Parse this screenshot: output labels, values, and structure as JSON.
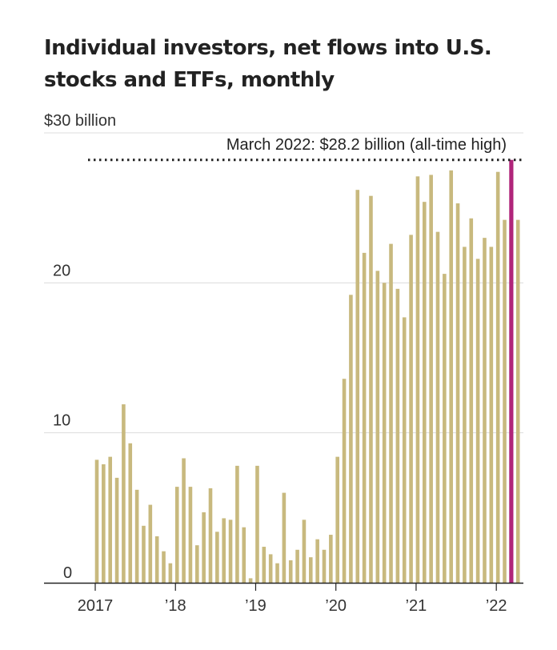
{
  "chart_data": {
    "type": "bar",
    "title": "Individual investors, net flows into U.S. stocks and ETFs, monthly",
    "xlabel": "",
    "ylabel": "",
    "ylim": [
      0,
      30
    ],
    "y_ticks": [
      {
        "value": 0,
        "label": "0"
      },
      {
        "value": 10,
        "label": "10"
      },
      {
        "value": 20,
        "label": "20"
      },
      {
        "value": 30,
        "label": "$30 billion"
      }
    ],
    "x_ticks": [
      {
        "month_index": 0,
        "label": "2017"
      },
      {
        "month_index": 12,
        "label": "’18"
      },
      {
        "month_index": 24,
        "label": "’19"
      },
      {
        "month_index": 36,
        "label": "’20"
      },
      {
        "month_index": 48,
        "label": "’21"
      },
      {
        "month_index": 60,
        "label": "’22"
      }
    ],
    "grid": true,
    "start": "2017-01",
    "categories": [
      "2017-01",
      "2017-02",
      "2017-03",
      "2017-04",
      "2017-05",
      "2017-06",
      "2017-07",
      "2017-08",
      "2017-09",
      "2017-10",
      "2017-11",
      "2017-12",
      "2018-01",
      "2018-02",
      "2018-03",
      "2018-04",
      "2018-05",
      "2018-06",
      "2018-07",
      "2018-08",
      "2018-09",
      "2018-10",
      "2018-11",
      "2018-12",
      "2019-01",
      "2019-02",
      "2019-03",
      "2019-04",
      "2019-05",
      "2019-06",
      "2019-07",
      "2019-08",
      "2019-09",
      "2019-10",
      "2019-11",
      "2019-12",
      "2020-01",
      "2020-02",
      "2020-03",
      "2020-04",
      "2020-05",
      "2020-06",
      "2020-07",
      "2020-08",
      "2020-09",
      "2020-10",
      "2020-11",
      "2020-12",
      "2021-01",
      "2021-02",
      "2021-03",
      "2021-04",
      "2021-05",
      "2021-06",
      "2021-07",
      "2021-08",
      "2021-09",
      "2021-10",
      "2021-11",
      "2021-12",
      "2022-01",
      "2022-02",
      "2022-03",
      "2022-04"
    ],
    "values": [
      8.2,
      7.9,
      8.4,
      7.0,
      11.9,
      9.3,
      6.2,
      3.8,
      5.2,
      3.1,
      2.1,
      1.3,
      6.4,
      8.3,
      6.4,
      2.5,
      4.7,
      6.3,
      3.4,
      4.3,
      4.2,
      7.8,
      3.7,
      0.3,
      7.8,
      2.4,
      1.9,
      1.3,
      6.0,
      1.5,
      2.2,
      4.2,
      1.7,
      2.9,
      2.2,
      3.2,
      8.4,
      13.6,
      19.2,
      26.2,
      22.0,
      25.8,
      20.8,
      20.0,
      22.6,
      19.6,
      17.7,
      23.2,
      27.1,
      25.4,
      27.2,
      23.4,
      20.6,
      27.5,
      25.3,
      22.4,
      24.3,
      21.6,
      23.0,
      22.4,
      27.4,
      24.2,
      28.2,
      24.2
    ],
    "highlight_index": 62,
    "bar_color": "#c8b97e",
    "highlight_color": "#b0257a",
    "annotation": {
      "text": "March 2022: $28.2 billion (all-time high)",
      "value": 28.2
    }
  }
}
